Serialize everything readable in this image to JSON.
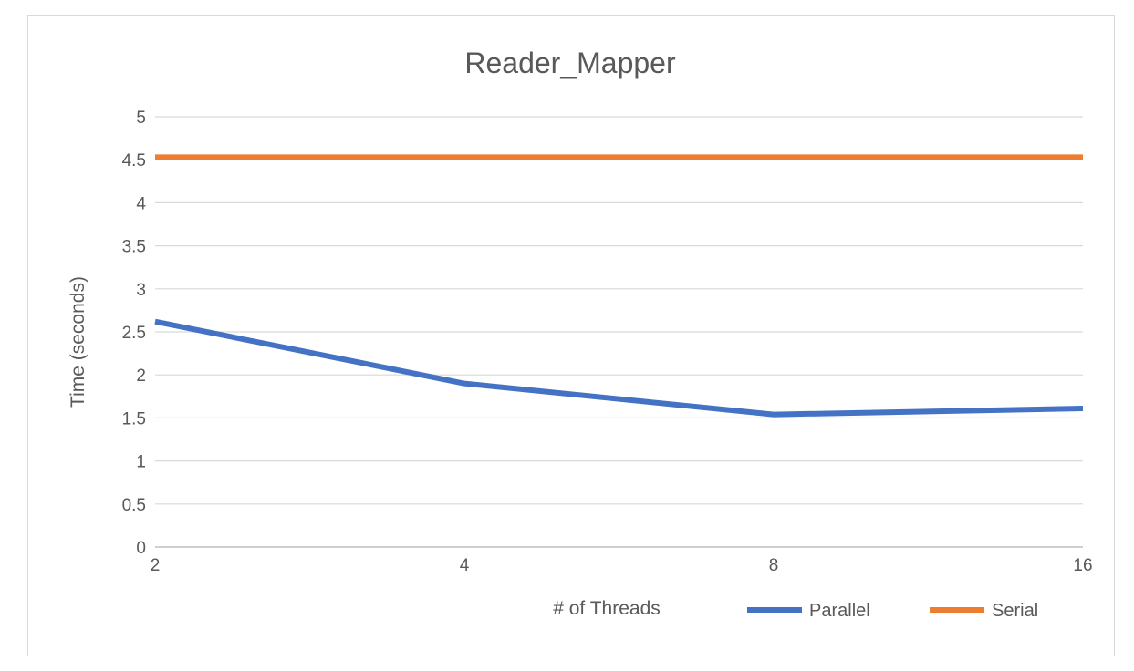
{
  "chart_data": {
    "type": "line",
    "title": "Reader_Mapper",
    "xlabel": "# of Threads",
    "ylabel": "Time (seconds)",
    "categories": [
      "2",
      "4",
      "8",
      "16"
    ],
    "ylim": [
      0,
      5
    ],
    "yticks": [
      "0",
      "0.5",
      "1",
      "1.5",
      "2",
      "2.5",
      "3",
      "3.5",
      "4",
      "4.5",
      "5"
    ],
    "grid": true,
    "legend_position": "bottom-right",
    "series": [
      {
        "name": "Parallel",
        "color": "#4472C4",
        "values": [
          2.62,
          1.9,
          1.54,
          1.61
        ]
      },
      {
        "name": "Serial",
        "color": "#ED7D31",
        "values": [
          4.53,
          4.53,
          4.53,
          4.53
        ]
      }
    ]
  }
}
